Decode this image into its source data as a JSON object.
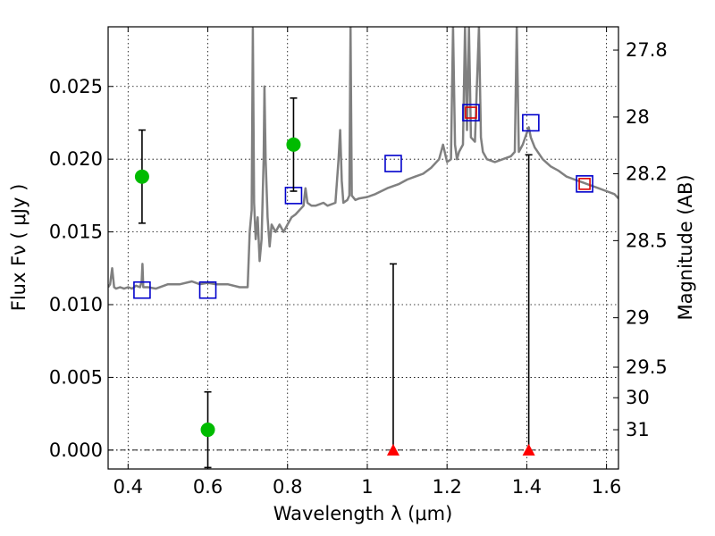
{
  "chart_data": {
    "type": "scatter",
    "title": "",
    "xlabel": "Wavelength  λ (μm)",
    "ylabel": "Flux  Fν  ( μJy )",
    "y2label": "Magnitude (AB)",
    "xlim": [
      0.35,
      1.63
    ],
    "ylim": [
      -0.0013,
      0.0291
    ],
    "grid": true,
    "x_ticks": [
      0.4,
      0.6,
      0.8,
      1.0,
      1.2,
      1.4,
      1.6
    ],
    "x_tick_labels": [
      "0.4",
      "0.6",
      "0.8",
      "1",
      "1.2",
      "1.4",
      "1.6"
    ],
    "y_ticks": [
      0.0,
      0.005,
      0.01,
      0.015,
      0.02,
      0.025
    ],
    "y_tick_labels": [
      "0.000",
      "0.005",
      "0.010",
      "0.015",
      "0.020",
      "0.025"
    ],
    "mag_ticks": [
      {
        "label": "27.8",
        "flux": 0.0275
      },
      {
        "label": "28",
        "flux": 0.0229
      },
      {
        "label": "28.2",
        "flux": 0.019
      },
      {
        "label": "28.5",
        "flux": 0.0144
      },
      {
        "label": "29",
        "flux": 0.0091
      },
      {
        "label": "29.5",
        "flux": 0.0057
      },
      {
        "label": "30",
        "flux": 0.0036
      },
      {
        "label": "31",
        "flux": 0.0014
      }
    ],
    "series": [
      {
        "kind": "line",
        "color": "#808080",
        "points": [
          [
            0.35,
            0.0112
          ],
          [
            0.355,
            0.0114
          ],
          [
            0.36,
            0.0125
          ],
          [
            0.365,
            0.0112
          ],
          [
            0.37,
            0.0111
          ],
          [
            0.38,
            0.0112
          ],
          [
            0.39,
            0.0111
          ],
          [
            0.4,
            0.0112
          ],
          [
            0.41,
            0.0111
          ],
          [
            0.42,
            0.0113
          ],
          [
            0.43,
            0.0112
          ],
          [
            0.434,
            0.0116
          ],
          [
            0.436,
            0.0128
          ],
          [
            0.438,
            0.0112
          ],
          [
            0.45,
            0.0112
          ],
          [
            0.47,
            0.0111
          ],
          [
            0.5,
            0.0114
          ],
          [
            0.53,
            0.0114
          ],
          [
            0.56,
            0.0116
          ],
          [
            0.58,
            0.0114
          ],
          [
            0.6,
            0.0115
          ],
          [
            0.62,
            0.0114
          ],
          [
            0.65,
            0.0114
          ],
          [
            0.68,
            0.0112
          ],
          [
            0.7,
            0.0112
          ],
          [
            0.705,
            0.015
          ],
          [
            0.71,
            0.0165
          ],
          [
            0.713,
            0.029
          ],
          [
            0.716,
            0.017
          ],
          [
            0.72,
            0.0145
          ],
          [
            0.725,
            0.016
          ],
          [
            0.73,
            0.013
          ],
          [
            0.735,
            0.0145
          ],
          [
            0.74,
            0.02
          ],
          [
            0.742,
            0.025
          ],
          [
            0.745,
            0.02
          ],
          [
            0.75,
            0.016
          ],
          [
            0.755,
            0.014
          ],
          [
            0.76,
            0.0155
          ],
          [
            0.77,
            0.015
          ],
          [
            0.78,
            0.0155
          ],
          [
            0.79,
            0.015
          ],
          [
            0.8,
            0.0155
          ],
          [
            0.81,
            0.016
          ],
          [
            0.82,
            0.0162
          ],
          [
            0.83,
            0.0165
          ],
          [
            0.84,
            0.0168
          ],
          [
            0.845,
            0.018
          ],
          [
            0.85,
            0.017
          ],
          [
            0.86,
            0.0168
          ],
          [
            0.87,
            0.0168
          ],
          [
            0.88,
            0.0169
          ],
          [
            0.89,
            0.017
          ],
          [
            0.9,
            0.0168
          ],
          [
            0.92,
            0.017
          ],
          [
            0.928,
            0.02
          ],
          [
            0.932,
            0.022
          ],
          [
            0.936,
            0.0185
          ],
          [
            0.94,
            0.017
          ],
          [
            0.95,
            0.0172
          ],
          [
            0.955,
            0.0175
          ],
          [
            0.958,
            0.0291
          ],
          [
            0.961,
            0.0175
          ],
          [
            0.97,
            0.0172
          ],
          [
            0.98,
            0.0173
          ],
          [
            1.0,
            0.0174
          ],
          [
            1.02,
            0.0176
          ],
          [
            1.05,
            0.018
          ],
          [
            1.08,
            0.0183
          ],
          [
            1.1,
            0.0186
          ],
          [
            1.12,
            0.0188
          ],
          [
            1.14,
            0.019
          ],
          [
            1.16,
            0.0194
          ],
          [
            1.18,
            0.02
          ],
          [
            1.19,
            0.021
          ],
          [
            1.2,
            0.0198
          ],
          [
            1.21,
            0.02
          ],
          [
            1.215,
            0.0291
          ],
          [
            1.22,
            0.021
          ],
          [
            1.225,
            0.02
          ],
          [
            1.23,
            0.0205
          ],
          [
            1.24,
            0.021
          ],
          [
            1.245,
            0.0291
          ],
          [
            1.25,
            0.022
          ],
          [
            1.255,
            0.0291
          ],
          [
            1.26,
            0.0215
          ],
          [
            1.27,
            0.0212
          ],
          [
            1.28,
            0.0291
          ],
          [
            1.285,
            0.0215
          ],
          [
            1.29,
            0.0205
          ],
          [
            1.3,
            0.02
          ],
          [
            1.32,
            0.0198
          ],
          [
            1.34,
            0.02
          ],
          [
            1.36,
            0.0202
          ],
          [
            1.37,
            0.0205
          ],
          [
            1.375,
            0.0291
          ],
          [
            1.38,
            0.0205
          ],
          [
            1.39,
            0.021
          ],
          [
            1.4,
            0.0218
          ],
          [
            1.405,
            0.0222
          ],
          [
            1.41,
            0.0215
          ],
          [
            1.42,
            0.0208
          ],
          [
            1.44,
            0.02
          ],
          [
            1.46,
            0.0195
          ],
          [
            1.48,
            0.0192
          ],
          [
            1.5,
            0.0188
          ],
          [
            1.52,
            0.0186
          ],
          [
            1.54,
            0.0184
          ],
          [
            1.56,
            0.0182
          ],
          [
            1.58,
            0.018
          ],
          [
            1.6,
            0.0178
          ],
          [
            1.62,
            0.0176
          ],
          [
            1.63,
            0.0173
          ]
        ]
      },
      {
        "kind": "scatter",
        "marker": "open-square",
        "color": "#0000cc",
        "points": [
          [
            0.435,
            0.011
          ],
          [
            0.6,
            0.011
          ],
          [
            0.815,
            0.0175
          ],
          [
            1.065,
            0.0197
          ],
          [
            1.26,
            0.0232
          ],
          [
            1.41,
            0.0225
          ],
          [
            1.545,
            0.0183
          ]
        ]
      },
      {
        "kind": "scatter",
        "marker": "open-square",
        "color": "#dd0000",
        "size": "small",
        "points": [
          [
            1.26,
            0.0232
          ],
          [
            1.545,
            0.0183
          ]
        ]
      },
      {
        "kind": "errorbar",
        "marker": "filled-circle",
        "color": "#00bb00",
        "points": [
          {
            "x": 0.435,
            "y": 0.0188,
            "yerr": 0.0032
          },
          {
            "x": 0.6,
            "y": 0.0014,
            "yerr": 0.0026
          },
          {
            "x": 0.815,
            "y": 0.021,
            "yerr": 0.0032
          }
        ]
      },
      {
        "kind": "upper-limit",
        "marker": "filled-triangle",
        "color": "#ff0000",
        "points": [
          {
            "x": 1.065,
            "y": 0.0,
            "top": 0.0128
          },
          {
            "x": 1.405,
            "y": 0.0,
            "top": 0.0203
          }
        ]
      }
    ],
    "zero_line": 0.0
  }
}
